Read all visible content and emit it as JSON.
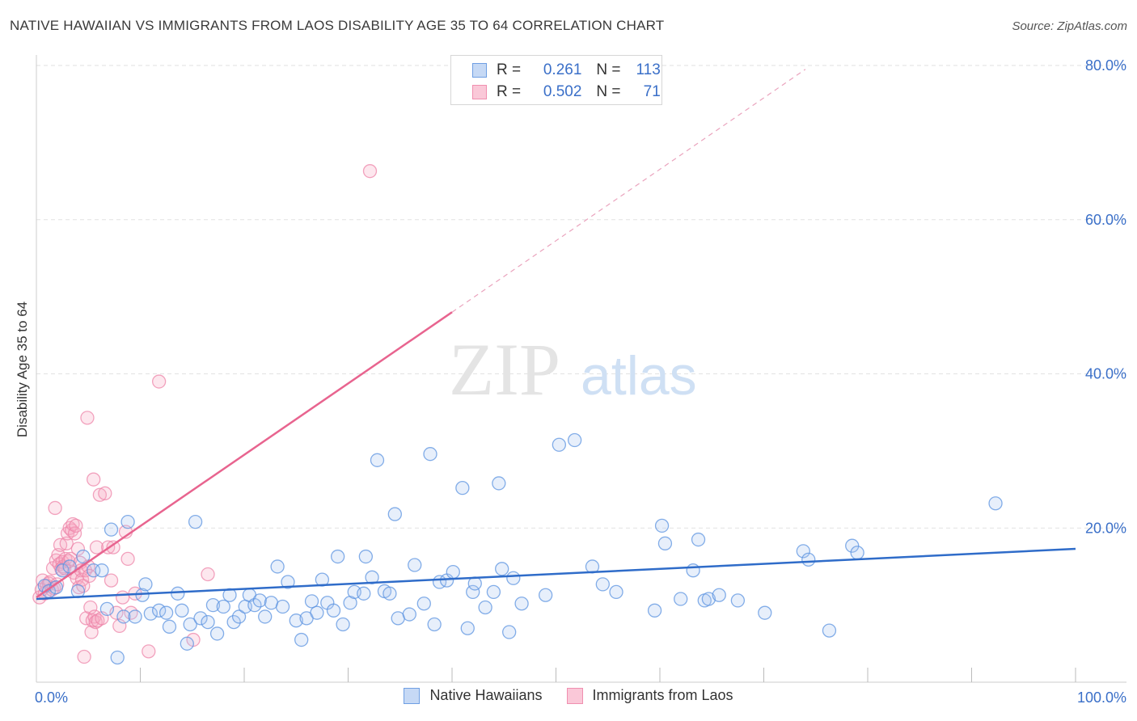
{
  "header": {
    "title": "NATIVE HAWAIIAN VS IMMIGRANTS FROM LAOS DISABILITY AGE 35 TO 64 CORRELATION CHART",
    "source": "Source: ZipAtlas.com"
  },
  "watermark": {
    "zip": "ZIP",
    "atlas": "atlas"
  },
  "legend_top": {
    "rows": [
      {
        "r_label": "R =",
        "r_value": "0.261",
        "n_label": "N =",
        "n_value": "113"
      },
      {
        "r_label": "R =",
        "r_value": "0.502",
        "n_label": "N =",
        "n_value": "71"
      }
    ]
  },
  "chart_data": {
    "type": "scatter",
    "title": "NATIVE HAWAIIAN VS IMMIGRANTS FROM LAOS DISABILITY AGE 35 TO 64 CORRELATION CHART",
    "xlabel": "",
    "ylabel": "Disability Age 35 to 64",
    "xlim": [
      0,
      100
    ],
    "ylim": [
      0,
      80
    ],
    "x_tick_labels": [
      "0.0%",
      "100.0%"
    ],
    "y_tick_labels": [
      "20.0%",
      "40.0%",
      "60.0%",
      "80.0%"
    ],
    "y_ticks": [
      20,
      40,
      60,
      80
    ],
    "grid": true,
    "legend_position": "bottom-center",
    "colors": {
      "blue": "#5b93e0",
      "blue_line": "#2f6cc9",
      "pink": "#f07aa0",
      "pink_line": "#e8648f",
      "tick_text": "#3a6fc8"
    },
    "series": [
      {
        "name": "Native Hawaiians",
        "color": "#5b93e0",
        "R": 0.261,
        "N": 113,
        "trend": {
          "x": [
            0,
            100
          ],
          "y": [
            10.8,
            17.3
          ],
          "style": "solid"
        },
        "points": [
          [
            0.8,
            12.5
          ],
          [
            1.2,
            11.8
          ],
          [
            1.9,
            12.3
          ],
          [
            2.5,
            14.5
          ],
          [
            3.2,
            15.0
          ],
          [
            4.0,
            11.8
          ],
          [
            4.5,
            16.3
          ],
          [
            5.5,
            14.5
          ],
          [
            6.3,
            14.5
          ],
          [
            6.8,
            9.5
          ],
          [
            7.2,
            19.8
          ],
          [
            7.8,
            3.2
          ],
          [
            8.4,
            8.5
          ],
          [
            8.8,
            20.8
          ],
          [
            9.5,
            8.5
          ],
          [
            10.2,
            11.3
          ],
          [
            10.5,
            12.7
          ],
          [
            11.0,
            8.9
          ],
          [
            11.8,
            9.3
          ],
          [
            12.5,
            9.0
          ],
          [
            12.8,
            7.2
          ],
          [
            13.6,
            11.5
          ],
          [
            14.0,
            9.3
          ],
          [
            14.5,
            5.0
          ],
          [
            14.8,
            7.5
          ],
          [
            15.3,
            20.8
          ],
          [
            15.8,
            8.3
          ],
          [
            16.5,
            7.8
          ],
          [
            17.0,
            10.0
          ],
          [
            17.4,
            6.3
          ],
          [
            18.0,
            9.8
          ],
          [
            18.6,
            11.3
          ],
          [
            19.0,
            7.8
          ],
          [
            19.5,
            8.5
          ],
          [
            20.1,
            9.8
          ],
          [
            20.5,
            11.3
          ],
          [
            21.0,
            10.0
          ],
          [
            21.5,
            10.6
          ],
          [
            22.0,
            8.5
          ],
          [
            22.6,
            10.3
          ],
          [
            23.2,
            15.0
          ],
          [
            23.7,
            9.8
          ],
          [
            24.2,
            13.0
          ],
          [
            25.0,
            8.0
          ],
          [
            25.5,
            5.5
          ],
          [
            26.0,
            8.3
          ],
          [
            26.5,
            10.5
          ],
          [
            27.0,
            9.0
          ],
          [
            27.5,
            13.3
          ],
          [
            28.0,
            10.3
          ],
          [
            28.6,
            9.3
          ],
          [
            29.0,
            16.3
          ],
          [
            29.5,
            7.5
          ],
          [
            30.2,
            10.3
          ],
          [
            30.6,
            11.7
          ],
          [
            31.5,
            11.5
          ],
          [
            31.7,
            16.3
          ],
          [
            32.3,
            13.6
          ],
          [
            32.8,
            28.8
          ],
          [
            33.5,
            11.8
          ],
          [
            34.0,
            11.5
          ],
          [
            34.5,
            21.8
          ],
          [
            34.8,
            8.3
          ],
          [
            35.9,
            8.8
          ],
          [
            36.4,
            15.2
          ],
          [
            37.3,
            10.2
          ],
          [
            37.9,
            29.6
          ],
          [
            38.3,
            7.5
          ],
          [
            38.8,
            13.0
          ],
          [
            39.5,
            13.2
          ],
          [
            40.1,
            14.3
          ],
          [
            41.0,
            25.2
          ],
          [
            41.5,
            7.0
          ],
          [
            42.0,
            11.7
          ],
          [
            42.2,
            12.8
          ],
          [
            43.2,
            9.7
          ],
          [
            44.0,
            11.7
          ],
          [
            44.5,
            25.8
          ],
          [
            44.8,
            14.7
          ],
          [
            45.5,
            6.5
          ],
          [
            45.9,
            13.5
          ],
          [
            46.7,
            10.2
          ],
          [
            49.0,
            11.3
          ],
          [
            50.3,
            30.8
          ],
          [
            51.8,
            31.4
          ],
          [
            53.5,
            15.0
          ],
          [
            54.5,
            12.7
          ],
          [
            55.8,
            11.7
          ],
          [
            59.5,
            9.3
          ],
          [
            60.2,
            20.3
          ],
          [
            60.5,
            18.0
          ],
          [
            62.0,
            10.8
          ],
          [
            63.2,
            14.5
          ],
          [
            63.7,
            18.5
          ],
          [
            64.3,
            10.6
          ],
          [
            64.7,
            10.8
          ],
          [
            65.7,
            11.3
          ],
          [
            67.5,
            10.6
          ],
          [
            70.1,
            9.0
          ],
          [
            73.8,
            17.0
          ],
          [
            74.3,
            15.9
          ],
          [
            76.3,
            6.7
          ],
          [
            78.5,
            17.7
          ],
          [
            79.0,
            16.8
          ],
          [
            92.3,
            23.2
          ]
        ]
      },
      {
        "name": "Immigrants from Laos",
        "color": "#f07aa0",
        "R": 0.502,
        "N": 71,
        "trend": {
          "x": [
            0,
            40
          ],
          "y": [
            11.0,
            48.0
          ],
          "style": "solid",
          "extension": {
            "x": [
              40,
              74
            ],
            "y": [
              48.0,
              79.5
            ],
            "style": "dashed"
          }
        },
        "points": [
          [
            0.3,
            11.0
          ],
          [
            0.5,
            12.0
          ],
          [
            0.6,
            13.2
          ],
          [
            0.8,
            11.5
          ],
          [
            1.0,
            12.5
          ],
          [
            1.2,
            12.8
          ],
          [
            1.3,
            13.0
          ],
          [
            1.5,
            12.0
          ],
          [
            1.6,
            14.8
          ],
          [
            1.7,
            12.2
          ],
          [
            1.8,
            22.6
          ],
          [
            1.9,
            15.8
          ],
          [
            2.0,
            12.7
          ],
          [
            2.1,
            16.5
          ],
          [
            2.2,
            15.3
          ],
          [
            2.3,
            17.8
          ],
          [
            2.4,
            14.7
          ],
          [
            2.5,
            15.6
          ],
          [
            2.6,
            15.0
          ],
          [
            2.7,
            14.8
          ],
          [
            2.8,
            16.0
          ],
          [
            2.9,
            18.0
          ],
          [
            3.0,
            19.3
          ],
          [
            3.1,
            15.7
          ],
          [
            3.2,
            20.0
          ],
          [
            3.3,
            16.0
          ],
          [
            3.4,
            19.7
          ],
          [
            3.5,
            20.5
          ],
          [
            3.6,
            14.2
          ],
          [
            3.7,
            19.3
          ],
          [
            3.8,
            20.3
          ],
          [
            3.9,
            13.5
          ],
          [
            4.0,
            17.3
          ],
          [
            4.1,
            12.3
          ],
          [
            4.2,
            15.5
          ],
          [
            4.3,
            14.5
          ],
          [
            4.4,
            13.3
          ],
          [
            4.5,
            12.5
          ],
          [
            4.6,
            3.3
          ],
          [
            4.7,
            14.5
          ],
          [
            4.8,
            8.3
          ],
          [
            4.9,
            34.3
          ],
          [
            5.0,
            15.0
          ],
          [
            5.1,
            13.8
          ],
          [
            5.2,
            9.7
          ],
          [
            5.3,
            6.5
          ],
          [
            5.4,
            8.0
          ],
          [
            5.5,
            26.3
          ],
          [
            5.6,
            8.5
          ],
          [
            5.7,
            7.8
          ],
          [
            5.8,
            17.5
          ],
          [
            5.9,
            8.0
          ],
          [
            6.1,
            24.3
          ],
          [
            6.3,
            8.3
          ],
          [
            6.6,
            24.5
          ],
          [
            6.9,
            17.5
          ],
          [
            7.2,
            13.2
          ],
          [
            7.4,
            17.5
          ],
          [
            7.7,
            9.0
          ],
          [
            8.0,
            7.3
          ],
          [
            8.3,
            11.0
          ],
          [
            8.6,
            19.5
          ],
          [
            8.8,
            16.0
          ],
          [
            9.1,
            9.0
          ],
          [
            9.5,
            11.5
          ],
          [
            10.8,
            4.0
          ],
          [
            11.8,
            39.0
          ],
          [
            15.1,
            5.5
          ],
          [
            16.5,
            14.0
          ],
          [
            32.1,
            66.3
          ]
        ]
      }
    ]
  }
}
